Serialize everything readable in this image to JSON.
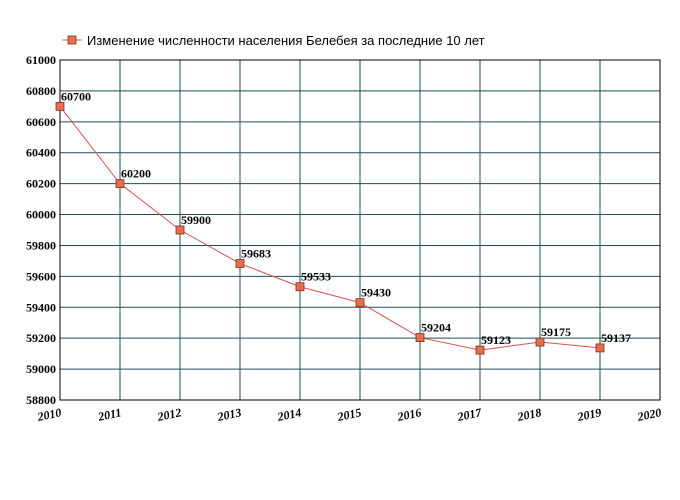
{
  "chart_data": {
    "type": "line",
    "title": "",
    "xlabel": "",
    "ylabel": "",
    "x": [
      2010,
      2011,
      2012,
      2013,
      2014,
      2015,
      2016,
      2017,
      2018,
      2019
    ],
    "x_ticks": [
      "2010",
      "2011",
      "2012",
      "2013",
      "2014",
      "2015",
      "2016",
      "2017",
      "2018",
      "2019",
      "2020"
    ],
    "xlim": [
      2010,
      2020
    ],
    "ylim": [
      58800,
      61000
    ],
    "y_ticks": [
      "58800",
      "59000",
      "59200",
      "59400",
      "59600",
      "59800",
      "60000",
      "60200",
      "60400",
      "60600",
      "60800",
      "61000"
    ],
    "grid": true,
    "legend_position": "top-left",
    "series": [
      {
        "name": "Изменение численности населения Белебея за последние 10 лет",
        "color": "#d9534f",
        "marker_fill": "#e07050",
        "values": [
          60700,
          60200,
          59900,
          59683,
          59533,
          59430,
          59204,
          59123,
          59175,
          59137
        ],
        "labels": [
          "60700",
          "60200",
          "59900",
          "59683",
          "59533",
          "59430",
          "59204",
          "59123",
          "59175",
          "59137"
        ]
      }
    ]
  },
  "style": {
    "grid_color": "#1f4e5a",
    "axis_color": "#000000"
  }
}
